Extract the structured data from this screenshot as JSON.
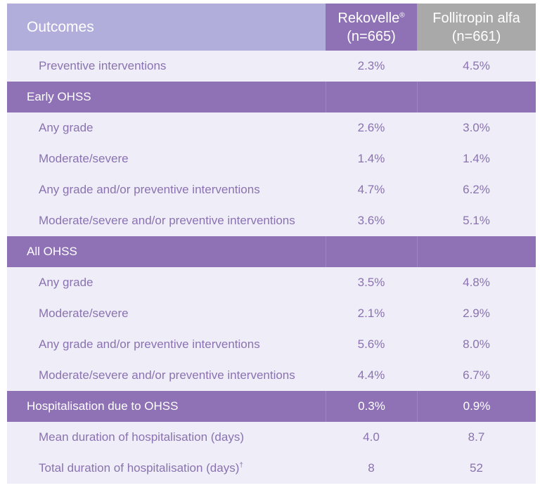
{
  "header": {
    "outcomes": "Outcomes",
    "col1_name": "Rekovelle",
    "col1_mark": "®",
    "col1_n": "(n=665)",
    "col2_name": "Follitropin alfa",
    "col2_n": "(n=661)"
  },
  "rows": [
    {
      "type": "body",
      "label": "Preventive interventions",
      "v1": "2.3%",
      "v2": "4.5%"
    },
    {
      "type": "section",
      "label": "Early OHSS",
      "v1": "",
      "v2": ""
    },
    {
      "type": "body",
      "label": "Any grade",
      "v1": "2.6%",
      "v2": "3.0%"
    },
    {
      "type": "body",
      "label": "Moderate/severe",
      "v1": "1.4%",
      "v2": "1.4%"
    },
    {
      "type": "body",
      "label": "Any grade and/or preventive interventions",
      "v1": "4.7%",
      "v2": "6.2%"
    },
    {
      "type": "body",
      "label": "Moderate/severe and/or preventive interventions",
      "v1": "3.6%",
      "v2": "5.1%"
    },
    {
      "type": "section",
      "label": "All OHSS",
      "v1": "",
      "v2": ""
    },
    {
      "type": "body",
      "label": "Any grade",
      "v1": "3.5%",
      "v2": "4.8%"
    },
    {
      "type": "body",
      "label": "Moderate/severe",
      "v1": "2.1%",
      "v2": "2.9%"
    },
    {
      "type": "body",
      "label": "Any grade and/or preventive interventions",
      "v1": "5.6%",
      "v2": "8.0%"
    },
    {
      "type": "body",
      "label": "Moderate/severe and/or preventive interventions",
      "v1": "4.4%",
      "v2": "6.7%"
    },
    {
      "type": "section",
      "label": "Hospitalisation due to OHSS",
      "v1": "0.3%",
      "v2": "0.9%"
    },
    {
      "type": "body",
      "label": "Mean duration of hospitalisation (days)",
      "v1": "4.0",
      "v2": "8.7"
    },
    {
      "type": "body",
      "label": "Total duration of hospitalisation (days)",
      "mark": "†",
      "v1": "8",
      "v2": "52"
    }
  ]
}
